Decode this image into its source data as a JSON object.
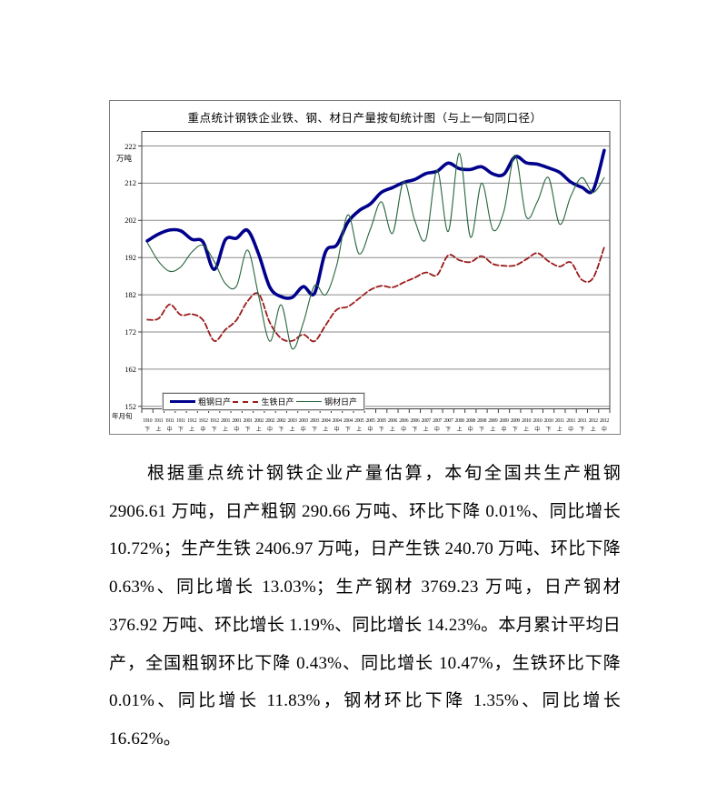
{
  "chart": {
    "title": "重点统计钢铁企业铁、钢、材日产量按旬统计图（与上一旬同口径）",
    "y_axis": {
      "unit": "万吨",
      "ticks": [
        222,
        212,
        202,
        192,
        182,
        172,
        162,
        152
      ]
    },
    "x_axis": {
      "caption": "年月旬"
    },
    "legend": [
      {
        "label": "粗钢日产",
        "color": "#00008c",
        "style": "solid-thick"
      },
      {
        "label": "生铁日产",
        "color": "#9b1b1b",
        "style": "dashed"
      },
      {
        "label": "钢材日产",
        "color": "#26663d",
        "style": "solid-thin"
      }
    ]
  },
  "chart_data": {
    "type": "line",
    "title": "重点统计钢铁企业铁、钢、材日产量按旬统计图（与上一旬同口径）",
    "ylabel": "万吨",
    "xlabel": "年月旬",
    "ylim": [
      152,
      222
    ],
    "grid": true,
    "legend_position": "bottom-inside",
    "categories": [
      "1910下",
      "1911上",
      "1911中",
      "1911下",
      "1912上",
      "1912中",
      "1912下",
      "2001上",
      "2001中",
      "2001下",
      "2002上",
      "2002中",
      "2002下",
      "2003上",
      "2003中",
      "2003下",
      "2004上",
      "2004中",
      "2004下",
      "2005上",
      "2005中",
      "2005下",
      "2006上",
      "2006中",
      "2006下",
      "2007上",
      "2007中",
      "2007下",
      "2008上",
      "2008中",
      "2008下",
      "2009上",
      "2009中",
      "2009下",
      "2010上",
      "2010中",
      "2010下",
      "2011上",
      "2011中",
      "2011下",
      "2012上",
      "2012中"
    ],
    "series": [
      {
        "name": "粗钢日产",
        "values": [
          196.5,
          198.3,
          199.4,
          199.2,
          196.9,
          196.2,
          188.8,
          196.8,
          197.2,
          199.3,
          192.8,
          184.0,
          181.5,
          181.3,
          184.2,
          182.4,
          193.6,
          195.4,
          201.5,
          204.6,
          206.4,
          209.5,
          210.8,
          212.2,
          213.0,
          214.6,
          215.2,
          217.4,
          215.9,
          215.7,
          216.4,
          214.5,
          214.4,
          219.1,
          217.5,
          217.1,
          216.1,
          214.9,
          212.3,
          210.9,
          210.1,
          220.8
        ]
      },
      {
        "name": "生铁日产",
        "values": [
          175.3,
          175.6,
          179.4,
          176.6,
          176.8,
          175.2,
          169.6,
          172.6,
          175.2,
          180.3,
          182.2,
          174.5,
          170.3,
          169.6,
          171.3,
          169.5,
          173.8,
          178.0,
          178.8,
          181.0,
          183.3,
          184.4,
          184.0,
          185.3,
          186.6,
          188.0,
          187.3,
          192.6,
          191.3,
          190.8,
          192.4,
          190.3,
          189.8,
          189.9,
          191.5,
          193.2,
          191.0,
          189.6,
          190.7,
          186.0,
          186.5,
          194.8
        ]
      },
      {
        "name": "钢材日产",
        "values": [
          196.0,
          191.0,
          188.3,
          189.5,
          193.5,
          195.3,
          191.0,
          185.0,
          184.3,
          194.0,
          181.5,
          169.5,
          179.3,
          167.5,
          174.5,
          184.5,
          182.0,
          190.0,
          203.5,
          193.0,
          199.5,
          207.0,
          198.5,
          212.5,
          202.0,
          197.0,
          215.5,
          199.0,
          220.0,
          197.5,
          212.0,
          199.5,
          204.5,
          219.5,
          203.0,
          207.0,
          213.5,
          201.0,
          208.5,
          213.5,
          209.5,
          213.5
        ]
      }
    ]
  },
  "paragraph": {
    "text": "根据重点统计钢铁企业产量估算，本旬全国共生产粗钢 2906.61 万吨，日产粗钢 290.66 万吨、环比下降 0.01%、同比增长 10.72%；生产生铁 2406.97 万吨，日产生铁 240.70 万吨、环比下降 0.63%、同比增长 13.03%；生产钢材 3769.23 万吨，日产钢材 376.92 万吨、环比增长 1.19%、同比增长 14.23%。本月累计平均日产，全国粗钢环比下降 0.43%、同比增长 10.47%，生铁环比下降 0.01%、同比增长 11.83%，钢材环比下降 1.35%、同比增长 16.62%。"
  }
}
